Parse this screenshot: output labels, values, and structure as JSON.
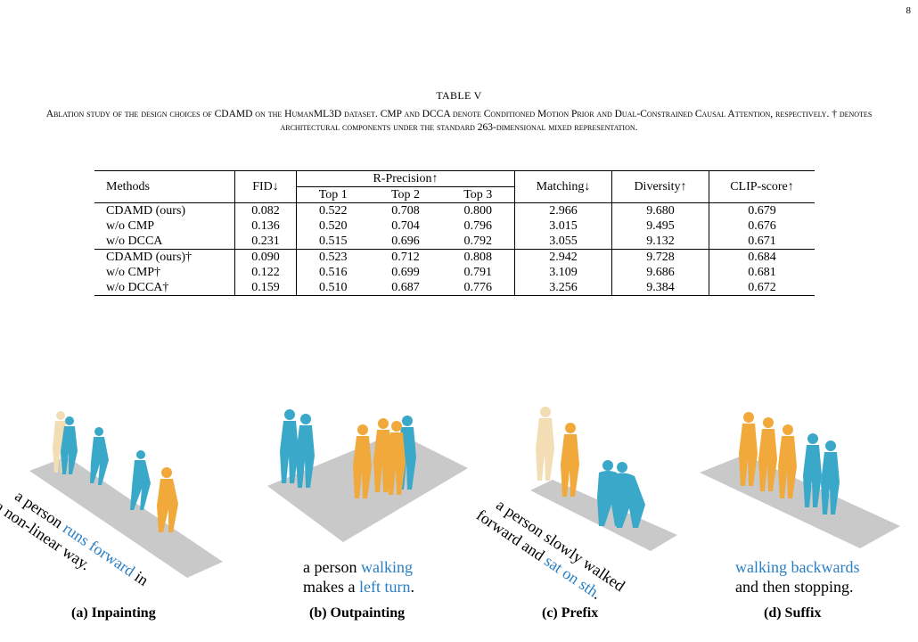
{
  "page_number": "8",
  "table": {
    "label": "TABLE V",
    "caption": "Ablation study of the design choices of CDAMD on the HumanML3D dataset. CMP and DCCA denote Conditioned Motion Prior and Dual-Constrained Causal Attention, respectively. † denotes architectural components under the standard 263-dimensional mixed representation.",
    "headers": {
      "methods": "Methods",
      "fid": "FID↓",
      "rprec": "R-Precision↑",
      "top1": "Top 1",
      "top2": "Top 2",
      "top3": "Top 3",
      "matching": "Matching↓",
      "diversity": "Diversity↑",
      "clip": "CLIP-score↑"
    },
    "rows": [
      {
        "method": "CDAMD (ours)",
        "fid": "0.082",
        "top1": "0.522",
        "top2": "0.708",
        "top3": "0.800",
        "matching": "2.966",
        "diversity": "9.680",
        "clip": "0.679"
      },
      {
        "method": "w/o CMP",
        "fid": "0.136",
        "top1": "0.520",
        "top2": "0.704",
        "top3": "0.796",
        "matching": "3.015",
        "diversity": "9.495",
        "clip": "0.676"
      },
      {
        "method": "w/o DCCA",
        "fid": "0.231",
        "top1": "0.515",
        "top2": "0.696",
        "top3": "0.792",
        "matching": "3.055",
        "diversity": "9.132",
        "clip": "0.671"
      },
      {
        "method": "CDAMD (ours)†",
        "fid": "0.090",
        "top1": "0.523",
        "top2": "0.712",
        "top3": "0.808",
        "matching": "2.942",
        "diversity": "9.728",
        "clip": "0.684"
      },
      {
        "method": "w/o CMP†",
        "fid": "0.122",
        "top1": "0.516",
        "top2": "0.699",
        "top3": "0.791",
        "matching": "3.109",
        "diversity": "9.686",
        "clip": "0.681"
      },
      {
        "method": "w/o DCCA†",
        "fid": "0.159",
        "top1": "0.510",
        "top2": "0.687",
        "top3": "0.776",
        "matching": "3.256",
        "diversity": "9.384",
        "clip": "0.672"
      }
    ]
  },
  "figure": {
    "colors": {
      "conditioned": "#f0a93a",
      "generated": "#3aa8c9",
      "faded": "#f2ddb5",
      "floor": "#c9c9c9",
      "text_highlight": "#2a7fc4"
    },
    "panels": [
      {
        "label": "(a) Inpainting",
        "text_parts": [
          "a person ",
          "runs forward",
          " in",
          "a non-linear way."
        ]
      },
      {
        "label": "(b) Outpainting",
        "text_parts": [
          "a person ",
          "walking",
          "makes a ",
          "left turn",
          "."
        ]
      },
      {
        "label": "(c) Prefix",
        "text_parts": [
          "a person slowly walked",
          "forward and ",
          "sat on sth",
          "."
        ]
      },
      {
        "label": "(d) Suffix",
        "text_parts": [
          "walking backwards",
          "and then stopping."
        ]
      }
    ]
  }
}
